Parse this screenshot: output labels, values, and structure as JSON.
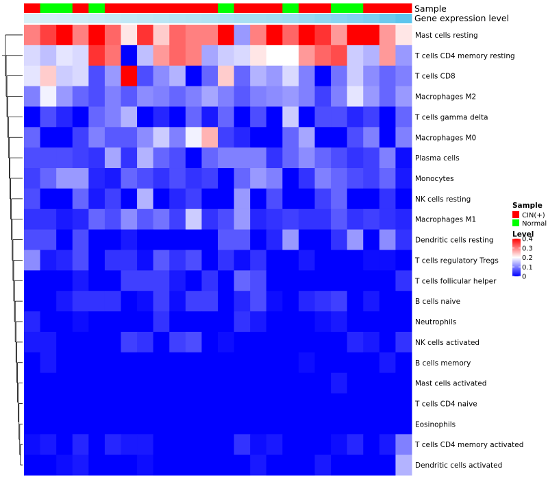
{
  "chart_data": {
    "type": "heatmap",
    "title": "",
    "track_labels": {
      "sample": "Sample",
      "expression": "Gene expression level"
    },
    "sample_groups": [
      "CIN(+)",
      "Normal",
      "Normal",
      "CIN(+)",
      "Normal",
      "CIN(+)",
      "CIN(+)",
      "CIN(+)",
      "CIN(+)",
      "CIN(+)",
      "CIN(+)",
      "CIN(+)",
      "Normal",
      "CIN(+)",
      "CIN(+)",
      "CIN(+)",
      "Normal",
      "CIN(+)",
      "CIN(+)",
      "Normal",
      "Normal",
      "CIN(+)",
      "CIN(+)",
      "CIN(+)"
    ],
    "group_colors": {
      "CIN(+)": "#ff0000",
      "Normal": "#00ff00"
    },
    "expression_track": [
      0.05,
      0.08,
      0.1,
      0.12,
      0.15,
      0.18,
      0.2,
      0.22,
      0.25,
      0.28,
      0.3,
      0.32,
      0.35,
      0.38,
      0.4,
      0.42,
      0.45,
      0.5,
      0.55,
      0.6,
      0.65,
      0.7,
      0.8,
      0.9
    ],
    "expression_colors": {
      "low": "#dff2f8",
      "high": "#4ec0ec"
    },
    "rows": [
      "Mast cells resting",
      "T cells CD4 memory resting",
      "T cells CD8",
      "Macrophages M2",
      "T cells gamma delta",
      "Macrophages M0",
      "Plasma cells",
      "Monocytes",
      "NK cells resting",
      "Macrophages M1",
      "Dendritic cells resting",
      "T cells regulatory  Tregs",
      "T cells follicular helper",
      "B cells naive",
      "Neutrophils",
      "NK cells activated",
      "B cells memory",
      "Mast cells activated",
      "T cells CD4 naive",
      "Eosinophils",
      "T cells CD4 memory activated",
      "Dendritic cells activated"
    ],
    "values": [
      [
        0.3,
        0.35,
        0.4,
        0.3,
        0.4,
        0.32,
        0.22,
        0.36,
        0.24,
        0.32,
        0.3,
        0.3,
        0.4,
        0.12,
        0.3,
        0.4,
        0.32,
        0.4,
        0.36,
        0.28,
        0.4,
        0.4,
        0.28,
        0.22
      ],
      [
        0.17,
        0.15,
        0.18,
        0.17,
        0.36,
        0.31,
        0.0,
        0.15,
        0.28,
        0.32,
        0.3,
        0.13,
        0.16,
        0.17,
        0.22,
        0.2,
        0.2,
        0.28,
        0.32,
        0.34,
        0.16,
        0.14,
        0.28,
        0.12
      ],
      [
        0.18,
        0.24,
        0.16,
        0.17,
        0.06,
        0.12,
        0.4,
        0.06,
        0.11,
        0.14,
        0.0,
        0.08,
        0.24,
        0.08,
        0.14,
        0.12,
        0.17,
        0.1,
        0.0,
        0.09,
        0.16,
        0.11,
        0.08,
        0.1
      ],
      [
        0.1,
        0.19,
        0.12,
        0.08,
        0.06,
        0.1,
        0.07,
        0.11,
        0.1,
        0.08,
        0.1,
        0.13,
        0.1,
        0.07,
        0.1,
        0.11,
        0.12,
        0.1,
        0.05,
        0.1,
        0.18,
        0.12,
        0.08,
        0.12
      ],
      [
        0.0,
        0.06,
        0.03,
        0.0,
        0.08,
        0.1,
        0.14,
        0.0,
        0.03,
        0.0,
        0.08,
        0.02,
        0.08,
        0.0,
        0.06,
        0.0,
        0.16,
        0.0,
        0.06,
        0.06,
        0.03,
        0.05,
        0.0,
        0.08
      ],
      [
        0.08,
        0.0,
        0.0,
        0.05,
        0.1,
        0.07,
        0.07,
        0.11,
        0.16,
        0.1,
        0.19,
        0.26,
        0.05,
        0.03,
        0.0,
        0.0,
        0.08,
        0.13,
        0.0,
        0.0,
        0.06,
        0.1,
        0.0,
        0.1
      ],
      [
        0.06,
        0.06,
        0.06,
        0.05,
        0.04,
        0.13,
        0.04,
        0.14,
        0.08,
        0.06,
        0.0,
        0.08,
        0.1,
        0.1,
        0.1,
        0.04,
        0.08,
        0.11,
        0.08,
        0.06,
        0.04,
        0.05,
        0.1,
        0.01
      ],
      [
        0.05,
        0.08,
        0.12,
        0.12,
        0.03,
        0.02,
        0.08,
        0.06,
        0.04,
        0.06,
        0.04,
        0.05,
        0.0,
        0.08,
        0.12,
        0.1,
        0.0,
        0.04,
        0.1,
        0.08,
        0.06,
        0.05,
        0.08,
        0.02
      ],
      [
        0.06,
        0.0,
        0.0,
        0.08,
        0.02,
        0.05,
        0.0,
        0.14,
        0.0,
        0.03,
        0.05,
        0.0,
        0.0,
        0.12,
        0.0,
        0.06,
        0.0,
        0.0,
        0.05,
        0.08,
        0.0,
        0.0,
        0.04,
        0.0
      ],
      [
        0.04,
        0.04,
        0.02,
        0.03,
        0.08,
        0.06,
        0.11,
        0.07,
        0.09,
        0.05,
        0.16,
        0.04,
        0.06,
        0.12,
        0.03,
        0.04,
        0.05,
        0.04,
        0.04,
        0.07,
        0.04,
        0.05,
        0.04,
        0.03
      ],
      [
        0.06,
        0.06,
        0.0,
        0.06,
        0.0,
        0.0,
        0.02,
        0.0,
        0.0,
        0.0,
        0.0,
        0.0,
        0.07,
        0.07,
        0.0,
        0.03,
        0.12,
        0.0,
        0.0,
        0.04,
        0.12,
        0.0,
        0.11,
        0.04
      ],
      [
        0.11,
        0.02,
        0.03,
        0.06,
        0.0,
        0.04,
        0.04,
        0.01,
        0.07,
        0.04,
        0.06,
        0.0,
        0.04,
        0.01,
        0.04,
        0.0,
        0.0,
        0.02,
        0.0,
        0.0,
        0.0,
        0.01,
        0.01,
        0.0
      ],
      [
        0.0,
        0.0,
        0.0,
        0.02,
        0.0,
        0.0,
        0.05,
        0.05,
        0.05,
        0.02,
        0.0,
        0.04,
        0.0,
        0.08,
        0.06,
        0.0,
        0.0,
        0.0,
        0.0,
        0.0,
        0.0,
        0.0,
        0.0,
        0.04
      ],
      [
        0.0,
        0.0,
        0.02,
        0.04,
        0.04,
        0.04,
        0.0,
        0.01,
        0.05,
        0.01,
        0.05,
        0.05,
        0.0,
        0.03,
        0.06,
        0.01,
        0.0,
        0.03,
        0.04,
        0.05,
        0.0,
        0.02,
        0.0,
        0.0
      ],
      [
        0.03,
        0.0,
        0.0,
        0.01,
        0.0,
        0.0,
        0.0,
        0.0,
        0.04,
        0.0,
        0.0,
        0.0,
        0.0,
        0.04,
        0.02,
        0.0,
        0.0,
        0.0,
        0.01,
        0.02,
        0.0,
        0.0,
        0.0,
        0.0
      ],
      [
        0.02,
        0.02,
        0.0,
        0.0,
        0.0,
        0.0,
        0.05,
        0.04,
        0.0,
        0.05,
        0.06,
        0.0,
        0.01,
        0.0,
        0.0,
        0.0,
        0.0,
        0.0,
        0.0,
        0.0,
        0.03,
        0.02,
        0.0,
        0.04
      ],
      [
        0.0,
        0.02,
        0.0,
        0.0,
        0.0,
        0.0,
        0.0,
        0.0,
        0.0,
        0.0,
        0.0,
        0.0,
        0.0,
        0.0,
        0.0,
        0.0,
        0.0,
        0.01,
        0.0,
        0.0,
        0.0,
        0.0,
        0.02,
        0.0
      ],
      [
        0.0,
        0.0,
        0.0,
        0.0,
        0.0,
        0.0,
        0.0,
        0.0,
        0.0,
        0.0,
        0.0,
        0.0,
        0.0,
        0.0,
        0.0,
        0.0,
        0.0,
        0.0,
        0.0,
        0.02,
        0.0,
        0.0,
        0.0,
        0.0
      ],
      [
        0.0,
        0.0,
        0.0,
        0.0,
        0.0,
        0.0,
        0.0,
        0.0,
        0.0,
        0.0,
        0.0,
        0.0,
        0.0,
        0.0,
        0.0,
        0.0,
        0.0,
        0.0,
        0.0,
        0.0,
        0.0,
        0.0,
        0.0,
        0.0
      ],
      [
        0.0,
        0.0,
        0.0,
        0.0,
        0.0,
        0.0,
        0.0,
        0.0,
        0.0,
        0.0,
        0.0,
        0.0,
        0.0,
        0.0,
        0.0,
        0.0,
        0.0,
        0.0,
        0.0,
        0.0,
        0.0,
        0.0,
        0.0,
        0.0
      ],
      [
        0.01,
        0.02,
        0.0,
        0.03,
        0.0,
        0.03,
        0.02,
        0.02,
        0.0,
        0.0,
        0.0,
        0.0,
        0.0,
        0.04,
        0.01,
        0.02,
        0.0,
        0.0,
        0.0,
        0.01,
        0.03,
        0.0,
        0.02,
        0.1
      ],
      [
        0.0,
        0.0,
        0.01,
        0.02,
        0.0,
        0.0,
        0.0,
        0.01,
        0.0,
        0.0,
        0.0,
        0.0,
        0.0,
        0.0,
        0.02,
        0.0,
        0.0,
        0.0,
        0.02,
        0.0,
        0.0,
        0.0,
        0.0,
        0.14
      ]
    ],
    "color_scale": {
      "min": 0,
      "max": 0.4,
      "stops": [
        {
          "value": 0,
          "color": "#0000ff"
        },
        {
          "value": 0.2,
          "color": "#ffffff"
        },
        {
          "value": 0.4,
          "color": "#ff0000"
        }
      ]
    },
    "legend": {
      "sample_title": "Sample",
      "sample_items": [
        {
          "label": "CIN(+)",
          "color": "#ff0000"
        },
        {
          "label": "Normal",
          "color": "#00ff00"
        }
      ],
      "level_title": "Level",
      "level_ticks": [
        {
          "label": "0.4",
          "value": 0.4
        },
        {
          "label": "0.3",
          "value": 0.3
        },
        {
          "label": "0.2",
          "value": 0.2
        },
        {
          "label": "0.1",
          "value": 0.1
        },
        {
          "label": "0",
          "value": 0
        }
      ]
    },
    "row_dendrogram": [
      [
        20,
        21
      ],
      [
        12,
        13
      ],
      [
        14,
        15
      ],
      [
        16,
        17
      ],
      [
        18,
        19
      ],
      [
        [
          16,
          17
        ],
        [
          18,
          19
        ]
      ],
      [
        [
          12,
          13
        ],
        [
          14,
          15
        ]
      ],
      [
        10,
        11
      ],
      [
        8,
        9
      ],
      [
        6,
        7
      ],
      [
        4,
        5
      ],
      [
        2,
        3
      ],
      [
        0,
        1
      ]
    ]
  }
}
